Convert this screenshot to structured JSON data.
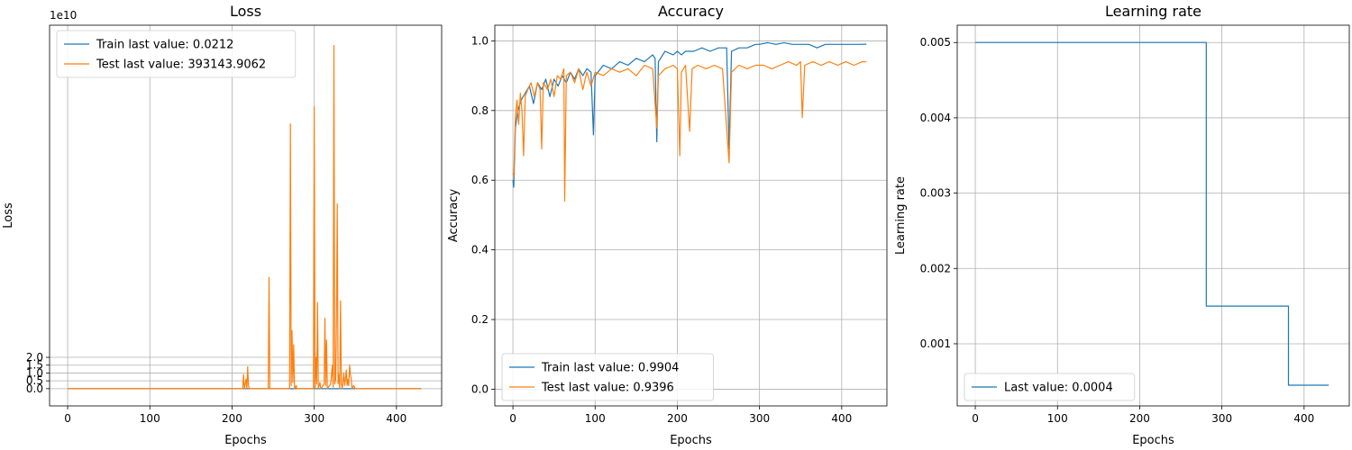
{
  "chart_data": [
    {
      "type": "line",
      "title": "Loss",
      "xlabel": "Epochs",
      "ylabel": "Loss",
      "xlim": [
        -22,
        455
      ],
      "ylim": [
        -1.1,
        23.2
      ],
      "xticks": [
        0,
        100,
        200,
        300,
        400
      ],
      "yticks": [
        0.0,
        0.5,
        1.0,
        1.5,
        2.0
      ],
      "ytick_scale": 10,
      "offset_text": "1e10",
      "grid": true,
      "legend_position": "top-left",
      "series": [
        {
          "name": "Train last value: 0.0212",
          "color": "#1f77b4",
          "points": [
            [
              0,
              0
            ],
            [
              430,
              0
            ]
          ]
        },
        {
          "name": "Test last value: 393143.9062",
          "color": "#ff7f0e",
          "points": [
            [
              0,
              0
            ],
            [
              213,
              0
            ],
            [
              214,
              0.9
            ],
            [
              215,
              0
            ],
            [
              217,
              0.6
            ],
            [
              218,
              0
            ],
            [
              219,
              1.4
            ],
            [
              220,
              0.2
            ],
            [
              221,
              0
            ],
            [
              244,
              0
            ],
            [
              245,
              7.1
            ],
            [
              246,
              0
            ],
            [
              270,
              0
            ],
            [
              271,
              16.9
            ],
            [
              272,
              0.2
            ],
            [
              273,
              3.7
            ],
            [
              274,
              0.4
            ],
            [
              275,
              2.8
            ],
            [
              276,
              0
            ],
            [
              278,
              0.2
            ],
            [
              279,
              0
            ],
            [
              299,
              0
            ],
            [
              300,
              18.0
            ],
            [
              301,
              0
            ],
            [
              302,
              2.0
            ],
            [
              303,
              0.3
            ],
            [
              304,
              5.5
            ],
            [
              305,
              0
            ],
            [
              307,
              0.4
            ],
            [
              308,
              0
            ],
            [
              312,
              0.3
            ],
            [
              313,
              4.5
            ],
            [
              314,
              0.2
            ],
            [
              315,
              3.1
            ],
            [
              316,
              0
            ],
            [
              320,
              0.3
            ],
            [
              322,
              1.5
            ],
            [
              323,
              0.1
            ],
            [
              324,
              21.9
            ],
            [
              325,
              0.3
            ],
            [
              326,
              0.6
            ],
            [
              327,
              4.4
            ],
            [
              328,
              11.8
            ],
            [
              329,
              0.3
            ],
            [
              330,
              0.9
            ],
            [
              331,
              0
            ],
            [
              332,
              5.6
            ],
            [
              333,
              0.3
            ],
            [
              334,
              0
            ],
            [
              336,
              1.0
            ],
            [
              337,
              0.2
            ],
            [
              338,
              0.6
            ],
            [
              339,
              1.2
            ],
            [
              340,
              0.2
            ],
            [
              341,
              0.6
            ],
            [
              342,
              0.2
            ],
            [
              343,
              1.5
            ],
            [
              344,
              0.9
            ],
            [
              345,
              0.6
            ],
            [
              346,
              0
            ],
            [
              348,
              0.2
            ],
            [
              350,
              0
            ],
            [
              430,
              0
            ]
          ]
        }
      ]
    },
    {
      "type": "line",
      "title": "Accuracy",
      "xlabel": "Epochs",
      "ylabel": "Accuracy",
      "xlim": [
        -22,
        455
      ],
      "ylim": [
        -0.048,
        1.045
      ],
      "xticks": [
        0,
        100,
        200,
        300,
        400
      ],
      "yticks": [
        0.0,
        0.2,
        0.4,
        0.6,
        0.8,
        1.0
      ],
      "grid": true,
      "legend_position": "bottom-left",
      "series": [
        {
          "name": "Train last value: 0.9904",
          "color": "#1f77b4",
          "points": [
            [
              0,
              0.6
            ],
            [
              1,
              0.58
            ],
            [
              3,
              0.75
            ],
            [
              6,
              0.8
            ],
            [
              10,
              0.83
            ],
            [
              15,
              0.85
            ],
            [
              20,
              0.87
            ],
            [
              25,
              0.82
            ],
            [
              30,
              0.88
            ],
            [
              35,
              0.86
            ],
            [
              40,
              0.89
            ],
            [
              45,
              0.84
            ],
            [
              50,
              0.89
            ],
            [
              55,
              0.87
            ],
            [
              60,
              0.9
            ],
            [
              65,
              0.88
            ],
            [
              70,
              0.91
            ],
            [
              75,
              0.89
            ],
            [
              80,
              0.92
            ],
            [
              85,
              0.9
            ],
            [
              90,
              0.92
            ],
            [
              95,
              0.91
            ],
            [
              98,
              0.73
            ],
            [
              100,
              0.9
            ],
            [
              110,
              0.93
            ],
            [
              120,
              0.92
            ],
            [
              130,
              0.94
            ],
            [
              140,
              0.93
            ],
            [
              150,
              0.95
            ],
            [
              160,
              0.94
            ],
            [
              170,
              0.96
            ],
            [
              173,
              0.95
            ],
            [
              175,
              0.71
            ],
            [
              177,
              0.94
            ],
            [
              185,
              0.97
            ],
            [
              195,
              0.96
            ],
            [
              200,
              0.97
            ],
            [
              205,
              0.96
            ],
            [
              210,
              0.97
            ],
            [
              220,
              0.97
            ],
            [
              230,
              0.98
            ],
            [
              240,
              0.97
            ],
            [
              250,
              0.98
            ],
            [
              260,
              0.98
            ],
            [
              263,
              0.69
            ],
            [
              266,
              0.97
            ],
            [
              275,
              0.98
            ],
            [
              285,
              0.98
            ],
            [
              295,
              0.99
            ],
            [
              300,
              0.99
            ],
            [
              310,
              0.995
            ],
            [
              320,
              0.99
            ],
            [
              330,
              0.995
            ],
            [
              340,
              0.99
            ],
            [
              350,
              0.99
            ],
            [
              360,
              0.99
            ],
            [
              370,
              0.98
            ],
            [
              380,
              0.99
            ],
            [
              390,
              0.99
            ],
            [
              400,
              0.99
            ],
            [
              410,
              0.99
            ],
            [
              420,
              0.99
            ],
            [
              430,
              0.9904
            ]
          ]
        },
        {
          "name": "Test last value: 0.9396",
          "color": "#ff7f0e",
          "points": [
            [
              0,
              0.62
            ],
            [
              1,
              0.61
            ],
            [
              3,
              0.78
            ],
            [
              5,
              0.83
            ],
            [
              7,
              0.76
            ],
            [
              9,
              0.85
            ],
            [
              11,
              0.8
            ],
            [
              13,
              0.67
            ],
            [
              15,
              0.84
            ],
            [
              18,
              0.86
            ],
            [
              22,
              0.88
            ],
            [
              26,
              0.84
            ],
            [
              30,
              0.88
            ],
            [
              33,
              0.86
            ],
            [
              35,
              0.69
            ],
            [
              37,
              0.88
            ],
            [
              42,
              0.86
            ],
            [
              46,
              0.89
            ],
            [
              50,
              0.84
            ],
            [
              54,
              0.9
            ],
            [
              58,
              0.89
            ],
            [
              62,
              0.92
            ],
            [
              63,
              0.54
            ],
            [
              65,
              0.9
            ],
            [
              70,
              0.91
            ],
            [
              75,
              0.88
            ],
            [
              80,
              0.92
            ],
            [
              85,
              0.86
            ],
            [
              90,
              0.91
            ],
            [
              95,
              0.87
            ],
            [
              100,
              0.91
            ],
            [
              110,
              0.9
            ],
            [
              120,
              0.92
            ],
            [
              130,
              0.91
            ],
            [
              140,
              0.92
            ],
            [
              150,
              0.9
            ],
            [
              160,
              0.93
            ],
            [
              170,
              0.92
            ],
            [
              175,
              0.75
            ],
            [
              177,
              0.9
            ],
            [
              185,
              0.92
            ],
            [
              195,
              0.93
            ],
            [
              200,
              0.92
            ],
            [
              203,
              0.67
            ],
            [
              205,
              0.91
            ],
            [
              210,
              0.93
            ],
            [
              215,
              0.74
            ],
            [
              218,
              0.92
            ],
            [
              225,
              0.93
            ],
            [
              235,
              0.92
            ],
            [
              245,
              0.93
            ],
            [
              255,
              0.92
            ],
            [
              263,
              0.65
            ],
            [
              266,
              0.91
            ],
            [
              275,
              0.93
            ],
            [
              285,
              0.92
            ],
            [
              295,
              0.93
            ],
            [
              305,
              0.93
            ],
            [
              315,
              0.92
            ],
            [
              325,
              0.93
            ],
            [
              335,
              0.94
            ],
            [
              345,
              0.93
            ],
            [
              350,
              0.94
            ],
            [
              352,
              0.78
            ],
            [
              355,
              0.93
            ],
            [
              365,
              0.94
            ],
            [
              375,
              0.93
            ],
            [
              385,
              0.94
            ],
            [
              395,
              0.93
            ],
            [
              405,
              0.94
            ],
            [
              415,
              0.93
            ],
            [
              425,
              0.94
            ],
            [
              430,
              0.9396
            ]
          ]
        }
      ]
    },
    {
      "type": "line",
      "title": "Learning rate",
      "xlabel": "Epochs",
      "ylabel": "Learning rate",
      "xlim": [
        -22,
        455
      ],
      "ylim": [
        0.000175,
        0.00523
      ],
      "xticks": [
        0,
        100,
        200,
        300,
        400
      ],
      "yticks": [
        0.001,
        0.002,
        0.003,
        0.004,
        0.005
      ],
      "grid": true,
      "legend_position": "bottom-left",
      "series": [
        {
          "name": "Last value: 0.0004",
          "color": "#1f77b4",
          "points": [
            [
              0,
              0.005
            ],
            [
              281,
              0.005
            ],
            [
              281,
              0.0015
            ],
            [
              381,
              0.0015
            ],
            [
              381,
              0.00045
            ],
            [
              430,
              0.00045
            ]
          ]
        }
      ]
    }
  ]
}
